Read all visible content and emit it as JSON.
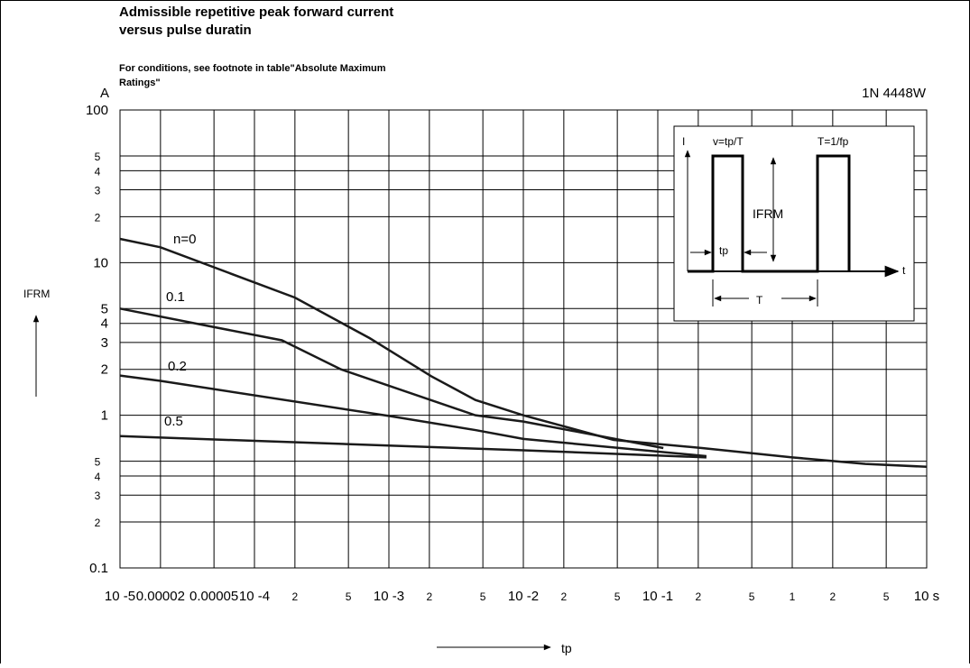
{
  "chart_data": {
    "type": "line",
    "title": [
      "Admissible repetitive peak forward current",
      "versus pulse duratin"
    ],
    "subtitle": [
      "For conditions, see footnote in table\"Absolute Maximum",
      "Ratings\""
    ],
    "y_unit": "A",
    "part": "1N 4448W",
    "y_label": "IFRM",
    "x_label": "tp",
    "xscale": "log",
    "yscale": "log",
    "grid": true,
    "color": "#1a1a1a",
    "xlim": [
      1e-05,
      10
    ],
    "ylim": [
      0.1,
      100
    ],
    "xticks": [
      {
        "value": 1e-05,
        "label": "10 -5"
      },
      2e-05,
      5e-05,
      {
        "value": 0.0001,
        "label": "10 -4"
      },
      {
        "value": 0.0002,
        "label": "2"
      },
      {
        "value": 0.0005,
        "label": "5"
      },
      {
        "value": 0.001,
        "label": "10 -3"
      },
      {
        "value": 0.002,
        "label": "2"
      },
      {
        "value": 0.005,
        "label": "5"
      },
      {
        "value": 0.01,
        "label": "10 -2"
      },
      {
        "value": 0.02,
        "label": "2"
      },
      {
        "value": 0.05,
        "label": "5"
      },
      {
        "value": 0.1,
        "label": "10 -1"
      },
      {
        "value": 0.2,
        "label": "2"
      },
      {
        "value": 0.5,
        "label": "5"
      },
      1,
      2,
      5,
      {
        "value": 10,
        "label": "10 s"
      }
    ],
    "yticks": [
      0.1,
      {
        "value": 0.2,
        "label": "2"
      },
      {
        "value": 0.3,
        "label": "3"
      },
      {
        "value": 0.4,
        "label": "4"
      },
      {
        "value": 0.5,
        "label": "5"
      },
      1,
      2,
      3,
      4,
      5,
      10,
      {
        "value": 20,
        "label": "2"
      },
      {
        "value": 30,
        "label": "3"
      },
      {
        "value": 40,
        "label": "4"
      },
      {
        "value": 50,
        "label": "5"
      },
      100
    ],
    "series": [
      {
        "name": "n=0",
        "x": [
          1e-05,
          2e-05,
          0.0002,
          0.00072,
          0.00207,
          0.0044,
          0.01,
          0.047,
          0.213,
          1,
          3.5,
          10
        ],
        "values": [
          14.3,
          12.6,
          5.9,
          3.2,
          1.8,
          1.26,
          1.0,
          0.69,
          0.61,
          0.53,
          0.48,
          0.46
        ]
      },
      {
        "name": "0.1",
        "x": [
          1e-05,
          4.5e-05,
          0.00016,
          0.00044,
          0.0044,
          0.01,
          0.11
        ],
        "values": [
          5.0,
          3.85,
          3.1,
          2.0,
          1.0,
          0.91,
          0.61
        ]
      },
      {
        "name": "0.2",
        "x": [
          1e-05,
          2e-05,
          0.001,
          0.0044,
          0.01,
          0.23
        ],
        "values": [
          1.82,
          1.68,
          0.99,
          0.8,
          0.7,
          0.54
        ]
      },
      {
        "name": "0.5",
        "x": [
          1e-05,
          0.01,
          0.23
        ],
        "values": [
          0.73,
          0.59,
          0.53
        ]
      }
    ],
    "inset": {
      "axis": "I",
      "duty": "v=tp/T",
      "period": "T=1/fp",
      "amplitude": "IFRM",
      "width": "tp",
      "time": "t",
      "span": "T"
    }
  }
}
